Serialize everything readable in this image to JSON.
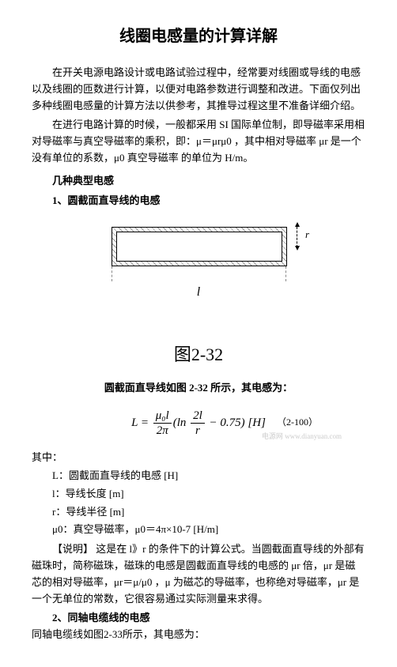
{
  "title": "线圈电感量的计算详解",
  "intro_p1": "在开关电源电路设计或电路试验过程中，经常要对线圈或导线的电感以及线圈的匝数进行计算，以便对电路参数进行调整和改进。下面仅列出多种线圈电感量的计算方法以供参考，其推导过程这里不准备详细介绍。",
  "intro_p2": "在进行电路计算的时候，一般都采用 SI 国际单位制，即导磁率采用相对导磁率与真空导磁率的乘积，即：μ＝μrμ0 ，其中相对导磁率 μr 是一个没有单位的系数，μ0 真空导磁率 的单位为 H/m。",
  "sec1_heading": "几种典型电感",
  "sec1_sub1": "1、圆截面直导线的电感",
  "figure_caption": "图2-32",
  "formula_intro": "圆截面直导线如图 2-32 所示，其电感为：",
  "formula_L": "L",
  "formula_eq": " = ",
  "formula_frac1_num": "μ₀l",
  "formula_frac1_den": "2π",
  "formula_ln": "(ln ",
  "formula_frac2_num": "2l",
  "formula_frac2_den": "r",
  "formula_tail": " − 0.75)  [H]",
  "formula_number": "（2-100）",
  "watermark": "电源网 www.dianyuan.com",
  "where_label": "其中：",
  "def_L": "L：圆截面直导线的电感 [H]",
  "def_l": "l：导线长度 [m]",
  "def_r": "r：导线半径 [m]",
  "def_mu0": "μ0：真空导磁率，μ0＝4π×10-7 [H/m]",
  "note": "【说明】 这是在 l》r 的条件下的计算公式。当圆截面直导线的外部有磁珠时，简称磁珠，磁珠的电感是圆截面直导线的电感的 μr 倍，μr 是磁芯的相对导磁率，μr＝μ/μ0 ，μ 为磁芯的导磁率，也称绝对导磁率，μr 是一个无单位的常数，它很容易通过实际测量来求得。",
  "sec1_sub2": "2、同轴电缆线的电感",
  "coax_text": "同轴电缆线如图2-33所示，其电感为：",
  "dim_l": "l",
  "dim_r": "r",
  "colors": {
    "text": "#000000",
    "background": "#ffffff",
    "watermark": "#cccccc",
    "hatch": "#999999"
  }
}
